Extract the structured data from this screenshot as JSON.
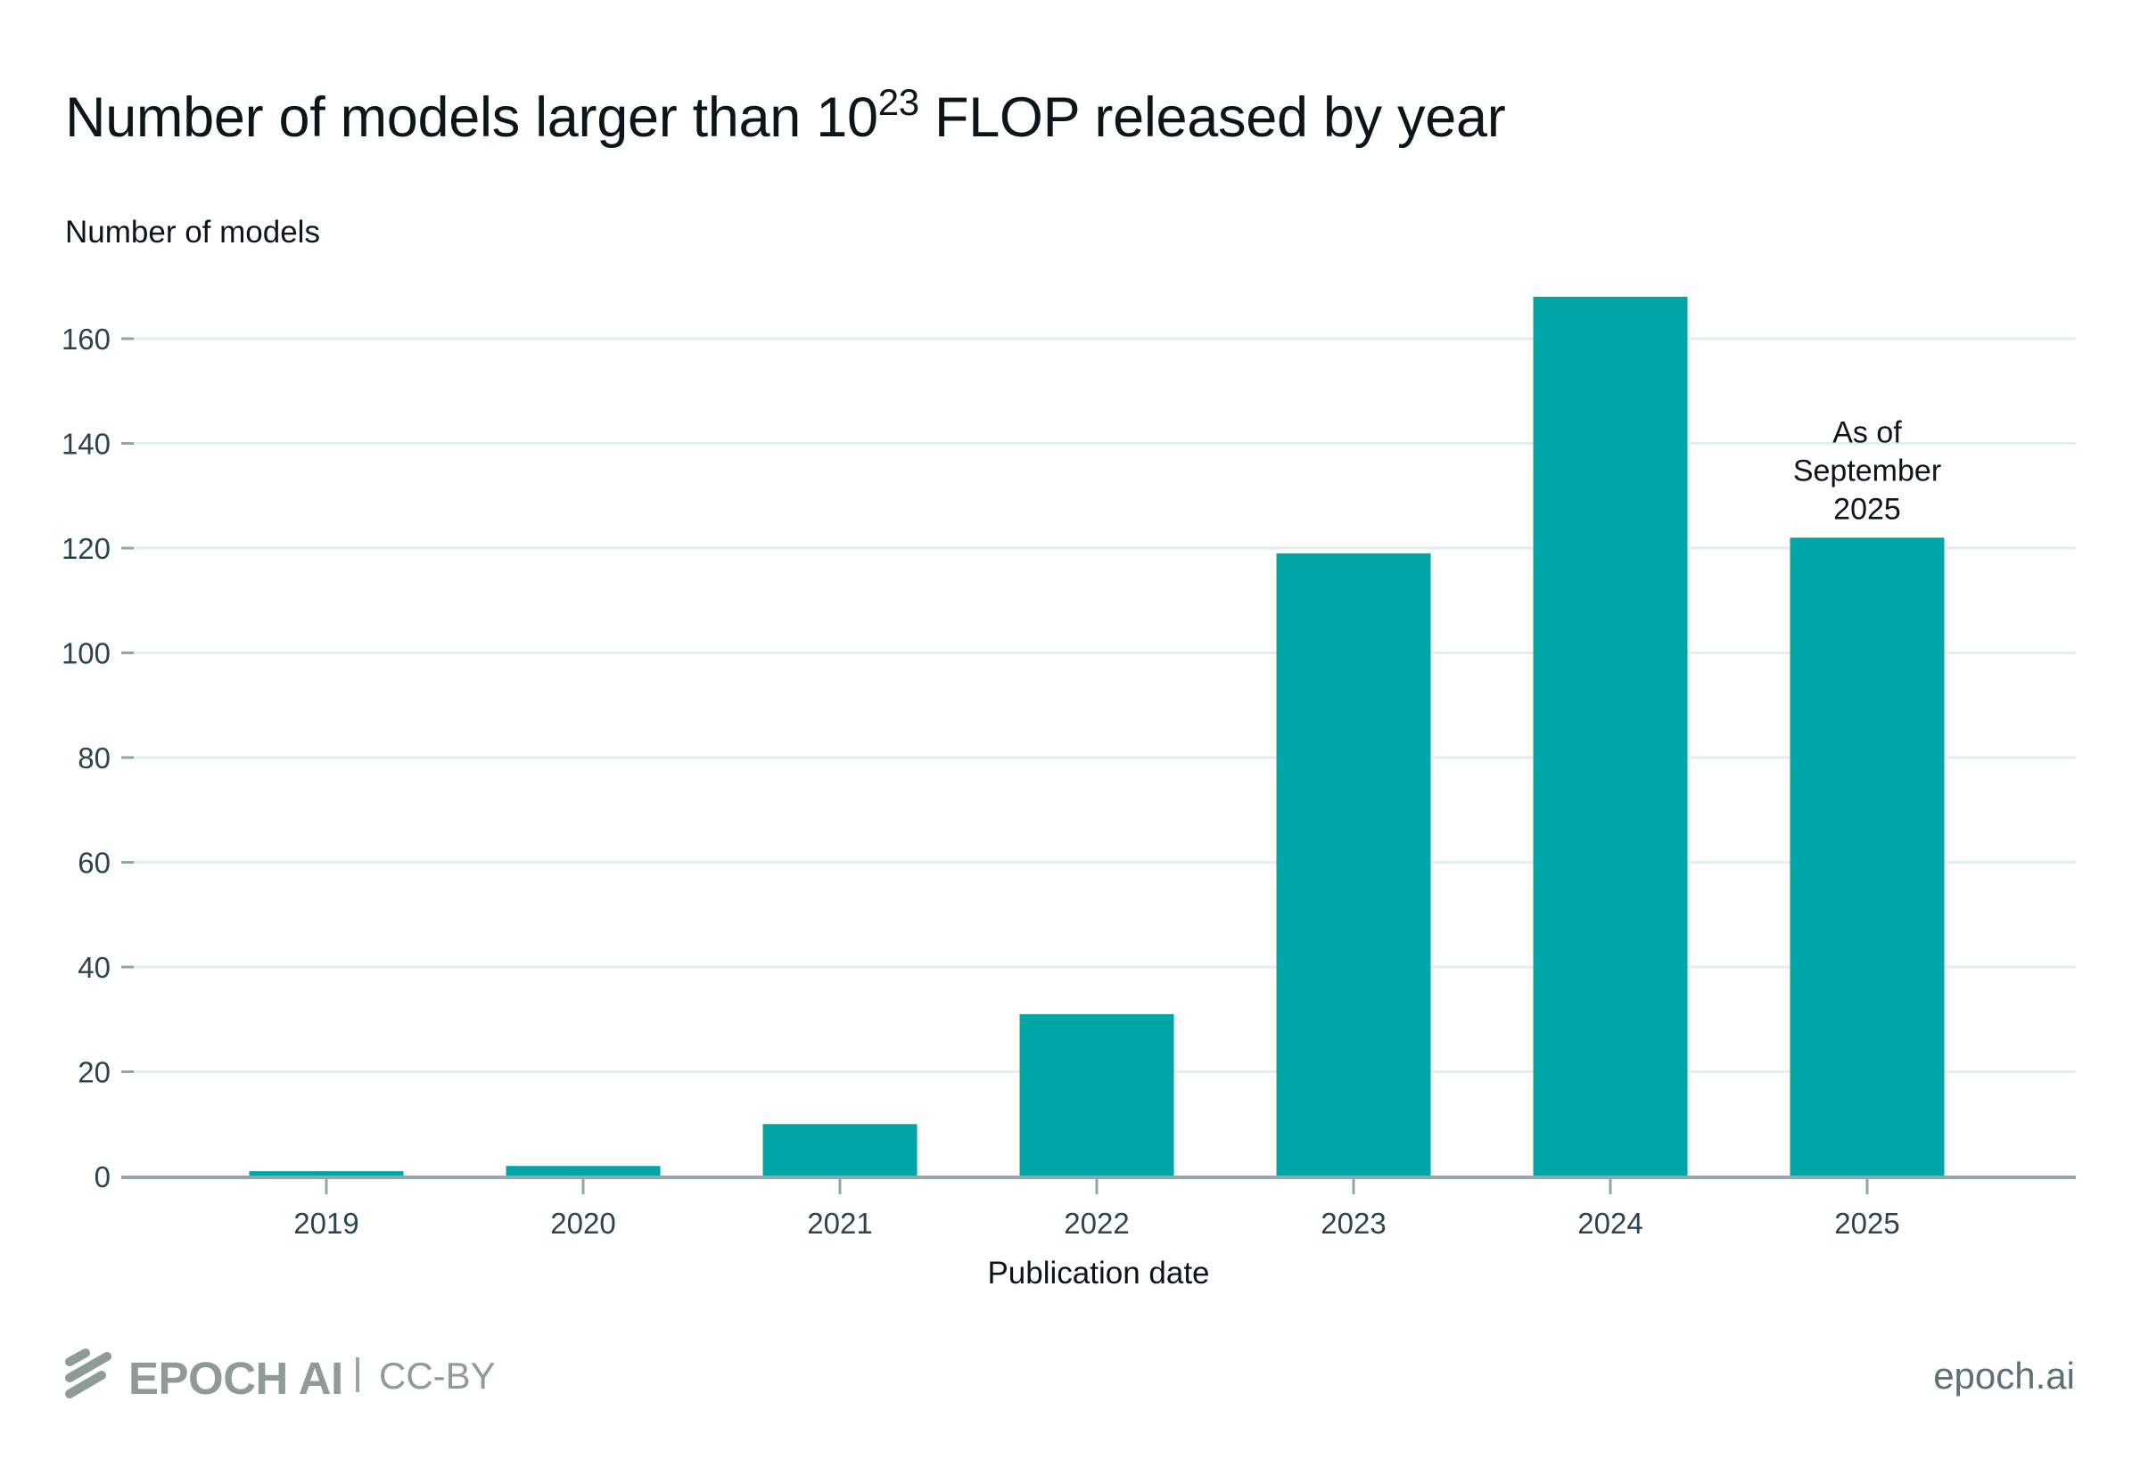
{
  "chart_data": {
    "type": "bar",
    "title": "Number of models larger than 10^23 FLOP released by year",
    "title_parts": {
      "prefix": "Number of models larger than 10",
      "superscript": "23",
      "suffix": " FLOP released by year"
    },
    "xlabel": "Publication date",
    "ylabel": "Number of models",
    "categories": [
      "2019",
      "2020",
      "2021",
      "2022",
      "2023",
      "2024",
      "2025"
    ],
    "values": [
      1,
      2,
      10,
      31,
      119,
      168,
      122
    ],
    "ylim": [
      0,
      170
    ],
    "yticks": [
      0,
      20,
      40,
      60,
      80,
      100,
      120,
      140,
      160
    ],
    "ytick_labels": [
      "0",
      "20",
      "40",
      "60",
      "80",
      "100",
      "120",
      "140",
      "160"
    ],
    "grid": true,
    "bar_color": "#00a5a6",
    "annotations": [
      {
        "category": "2025",
        "lines": [
          "As of",
          "September",
          "2025"
        ]
      }
    ]
  },
  "footer": {
    "brand": "EPOCH AI",
    "separator": "|",
    "license": "CC-BY",
    "site": "epoch.ai",
    "logo_icon": "epoch-logo-icon"
  }
}
